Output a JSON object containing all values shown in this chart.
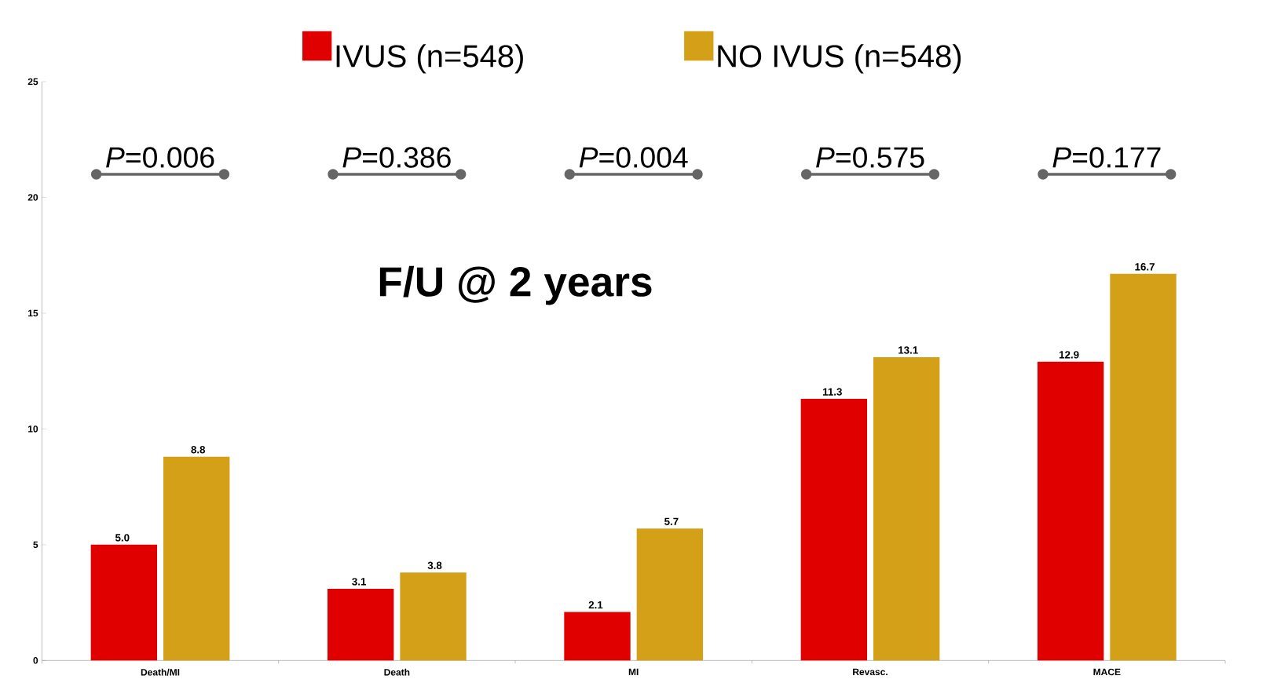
{
  "chart_data": {
    "type": "bar",
    "categories": [
      "Death/MI",
      "Death",
      "MI",
      "Revasc.",
      "MACE"
    ],
    "series": [
      {
        "name": "IVUS (n=548)",
        "color": "#e00000",
        "values": [
          5.0,
          3.1,
          2.1,
          11.3,
          12.9
        ],
        "value_labels": [
          "5.0",
          "3.1",
          "2.1",
          "11.3",
          "12.9"
        ]
      },
      {
        "name": "NO IVUS (n=548)",
        "color": "#d4a017",
        "values": [
          8.8,
          3.8,
          5.7,
          13.1,
          16.7
        ],
        "value_labels": [
          "8.8",
          "3.8",
          "5.7",
          "13.1",
          "16.7"
        ]
      }
    ],
    "ylim": [
      0,
      25
    ],
    "yticks": [
      0,
      5,
      10,
      15,
      20,
      25
    ],
    "grid": false,
    "legend": "top",
    "annotations": [
      "*P*=0.006",
      "*P*=0.386",
      "*P*=0.004",
      "*P*=0.575",
      "*P*=0.177",
      "**F/U @ 2 years**"
    ]
  }
}
